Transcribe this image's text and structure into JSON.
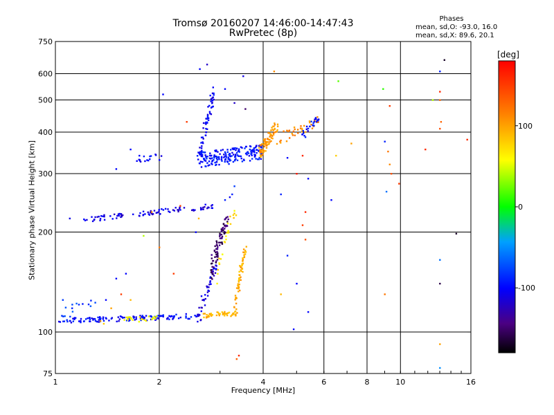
{
  "chart_data": {
    "type": "scatter",
    "title": "Tromsø 20160207 14:46:00-14:47:43",
    "subtitle": "RwPretec (8p)",
    "xlabel": "Frequency [MHz]",
    "ylabel": "Stationary phase Virtual Height [km]",
    "x_scale": "log",
    "y_scale": "log",
    "xlim": [
      1,
      16
    ],
    "ylim": [
      75,
      750
    ],
    "x_ticks": [
      1,
      2,
      4,
      6,
      8,
      10,
      16
    ],
    "x_grid": [
      1,
      2,
      4,
      6,
      8,
      10,
      16
    ],
    "y_ticks": [
      75,
      100,
      200,
      300,
      400,
      500,
      600,
      750
    ],
    "y_grid": [
      100,
      200,
      300,
      400,
      500,
      600
    ],
    "grid": true,
    "stats": {
      "header": "Phases",
      "o_line": "mean, sd,O: -93.0, 16.0",
      "x_line": "mean, sd,X: 89.6, 20.1"
    },
    "colorbar": {
      "label": "[deg]",
      "min": -180,
      "max": 180,
      "ticks": [
        100,
        0,
        -100
      ],
      "tick_labels": [
        "100",
        "0",
        "-100"
      ]
    },
    "traces": [
      {
        "name": "",
        "freq_start": 1.02,
        "freq_end": 2.65,
        "h_start": 108,
        "h_end": 112,
        "phase": -100,
        "count": 140,
        "jitter_h": 2
      },
      {
        "name": "",
        "freq_start": 1.55,
        "freq_end": 1.95,
        "h_start": 109,
        "h_end": 110,
        "phase": 60,
        "count": 25,
        "jitter_h": 2
      },
      {
        "name": "",
        "freq_start": 2.6,
        "freq_end": 2.95,
        "h_start": 112,
        "h_end": 160,
        "phase": -110,
        "count": 40,
        "jitter_h": 6
      },
      {
        "name": "",
        "freq_start": 2.7,
        "freq_end": 3.35,
        "h_start": 112,
        "h_end": 114,
        "phase": 90,
        "count": 45,
        "jitter_h": 2
      },
      {
        "name": "",
        "freq_start": 3.3,
        "freq_end": 3.55,
        "h_start": 115,
        "h_end": 178,
        "phase": 95,
        "count": 60,
        "jitter_h": 6
      },
      {
        "name": "",
        "freq_start": 2.8,
        "freq_end": 3.15,
        "h_start": 150,
        "h_end": 215,
        "phase": -150,
        "count": 80,
        "jitter_h": 10
      },
      {
        "name": "",
        "freq_start": 2.9,
        "freq_end": 3.35,
        "h_start": 140,
        "h_end": 240,
        "phase": 70,
        "count": 25,
        "jitter_h": 10
      },
      {
        "name": "",
        "freq_start": 1.2,
        "freq_end": 2.9,
        "h_start": 218,
        "h_end": 240,
        "phase": -110,
        "count": 90,
        "jitter_h": 4
      },
      {
        "name": "",
        "freq_start": 2.6,
        "freq_end": 2.9,
        "h_start": 330,
        "h_end": 540,
        "phase": -105,
        "count": 60,
        "jitter_h": 20
      },
      {
        "name": "",
        "freq_start": 2.6,
        "freq_end": 4.0,
        "h_start": 330,
        "h_end": 350,
        "phase": -95,
        "count": 200,
        "jitter_h": 18
      },
      {
        "name": "",
        "freq_start": 3.9,
        "freq_end": 4.4,
        "h_start": 345,
        "h_end": 420,
        "phase": 105,
        "count": 80,
        "jitter_h": 18
      },
      {
        "name": "",
        "freq_start": 4.4,
        "freq_end": 5.8,
        "h_start": 380,
        "h_end": 430,
        "phase": 110,
        "count": 40,
        "jitter_h": 15
      },
      {
        "name": "",
        "freq_start": 5.2,
        "freq_end": 5.8,
        "h_start": 390,
        "h_end": 440,
        "phase": -100,
        "count": 25,
        "jitter_h": 12
      },
      {
        "name": "",
        "freq_start": 1.7,
        "freq_end": 2.05,
        "h_start": 330,
        "h_end": 340,
        "phase": -105,
        "count": 15,
        "jitter_h": 6
      },
      {
        "name": "",
        "freq_start": 1.02,
        "freq_end": 1.3,
        "h_start": 112,
        "h_end": 125,
        "phase": -80,
        "count": 15,
        "jitter_h": 5
      }
    ],
    "scattered": [
      {
        "x": 2.62,
        "y": 620,
        "phase": -100
      },
      {
        "x": 2.75,
        "y": 640,
        "phase": -120
      },
      {
        "x": 3.5,
        "y": 590,
        "phase": -110
      },
      {
        "x": 4.3,
        "y": 610,
        "phase": 110
      },
      {
        "x": 6.6,
        "y": 570,
        "phase": 20
      },
      {
        "x": 8.9,
        "y": 540,
        "phase": 10
      },
      {
        "x": 13.0,
        "y": 610,
        "phase": -90
      },
      {
        "x": 13.4,
        "y": 660,
        "phase": -170
      },
      {
        "x": 13.0,
        "y": 530,
        "phase": 160
      },
      {
        "x": 13.0,
        "y": 500,
        "phase": 130
      },
      {
        "x": 13.1,
        "y": 430,
        "phase": 130
      },
      {
        "x": 13.0,
        "y": 410,
        "phase": 140
      },
      {
        "x": 12.4,
        "y": 500,
        "phase": 40
      },
      {
        "x": 9.3,
        "y": 480,
        "phase": 150
      },
      {
        "x": 9.0,
        "y": 375,
        "phase": -90
      },
      {
        "x": 9.2,
        "y": 350,
        "phase": 120
      },
      {
        "x": 9.3,
        "y": 320,
        "phase": 110
      },
      {
        "x": 9.4,
        "y": 300,
        "phase": 140
      },
      {
        "x": 9.9,
        "y": 280,
        "phase": 150
      },
      {
        "x": 11.8,
        "y": 355,
        "phase": 160
      },
      {
        "x": 15.6,
        "y": 380,
        "phase": 160
      },
      {
        "x": 7.2,
        "y": 370,
        "phase": 100
      },
      {
        "x": 6.5,
        "y": 340,
        "phase": 80
      },
      {
        "x": 5.2,
        "y": 340,
        "phase": 160
      },
      {
        "x": 4.7,
        "y": 335,
        "phase": -100
      },
      {
        "x": 5.0,
        "y": 300,
        "phase": 170
      },
      {
        "x": 4.5,
        "y": 260,
        "phase": -90
      },
      {
        "x": 5.4,
        "y": 290,
        "phase": -100
      },
      {
        "x": 6.3,
        "y": 250,
        "phase": -100
      },
      {
        "x": 5.3,
        "y": 230,
        "phase": 160
      },
      {
        "x": 5.2,
        "y": 210,
        "phase": 150
      },
      {
        "x": 5.3,
        "y": 190,
        "phase": 140
      },
      {
        "x": 4.7,
        "y": 170,
        "phase": -90
      },
      {
        "x": 5.0,
        "y": 140,
        "phase": -100
      },
      {
        "x": 4.5,
        "y": 130,
        "phase": 90
      },
      {
        "x": 5.4,
        "y": 115,
        "phase": -100
      },
      {
        "x": 4.9,
        "y": 102,
        "phase": -100
      },
      {
        "x": 9.0,
        "y": 130,
        "phase": 120
      },
      {
        "x": 9.1,
        "y": 265,
        "phase": -60
      },
      {
        "x": 13.0,
        "y": 165,
        "phase": -60
      },
      {
        "x": 13.0,
        "y": 140,
        "phase": -160
      },
      {
        "x": 13.0,
        "y": 92,
        "phase": 100
      },
      {
        "x": 13.0,
        "y": 78,
        "phase": -50
      },
      {
        "x": 14.5,
        "y": 198,
        "phase": -170
      },
      {
        "x": 3.4,
        "y": 85,
        "phase": 160
      },
      {
        "x": 3.35,
        "y": 83,
        "phase": 130
      },
      {
        "x": 2.05,
        "y": 520,
        "phase": -100
      },
      {
        "x": 3.1,
        "y": 540,
        "phase": -100
      },
      {
        "x": 3.3,
        "y": 490,
        "phase": -120
      },
      {
        "x": 3.55,
        "y": 470,
        "phase": -150
      },
      {
        "x": 2.0,
        "y": 330,
        "phase": -100
      },
      {
        "x": 1.75,
        "y": 340,
        "phase": -100
      },
      {
        "x": 1.5,
        "y": 310,
        "phase": -100
      },
      {
        "x": 1.65,
        "y": 355,
        "phase": -100
      },
      {
        "x": 2.4,
        "y": 430,
        "phase": 150
      },
      {
        "x": 2.3,
        "y": 240,
        "phase": 150
      },
      {
        "x": 1.9,
        "y": 230,
        "phase": 110
      },
      {
        "x": 1.8,
        "y": 195,
        "phase": 40
      },
      {
        "x": 2.6,
        "y": 220,
        "phase": 90
      },
      {
        "x": 2.55,
        "y": 200,
        "phase": -100
      },
      {
        "x": 2.2,
        "y": 150,
        "phase": 150
      },
      {
        "x": 2.0,
        "y": 180,
        "phase": 120
      },
      {
        "x": 1.6,
        "y": 150,
        "phase": -100
      },
      {
        "x": 1.5,
        "y": 145,
        "phase": -100
      },
      {
        "x": 1.4,
        "y": 125,
        "phase": -100
      },
      {
        "x": 1.45,
        "y": 118,
        "phase": 100
      },
      {
        "x": 1.55,
        "y": 130,
        "phase": 150
      },
      {
        "x": 1.65,
        "y": 125,
        "phase": 90
      },
      {
        "x": 1.1,
        "y": 220,
        "phase": -110
      },
      {
        "x": 1.35,
        "y": 108,
        "phase": 100
      },
      {
        "x": 1.38,
        "y": 106,
        "phase": 80
      },
      {
        "x": 1.05,
        "y": 125,
        "phase": -80
      },
      {
        "x": 3.2,
        "y": 255,
        "phase": -105
      },
      {
        "x": 3.25,
        "y": 260,
        "phase": -90
      },
      {
        "x": 3.3,
        "y": 275,
        "phase": -80
      },
      {
        "x": 3.1,
        "y": 250,
        "phase": -90
      }
    ]
  }
}
